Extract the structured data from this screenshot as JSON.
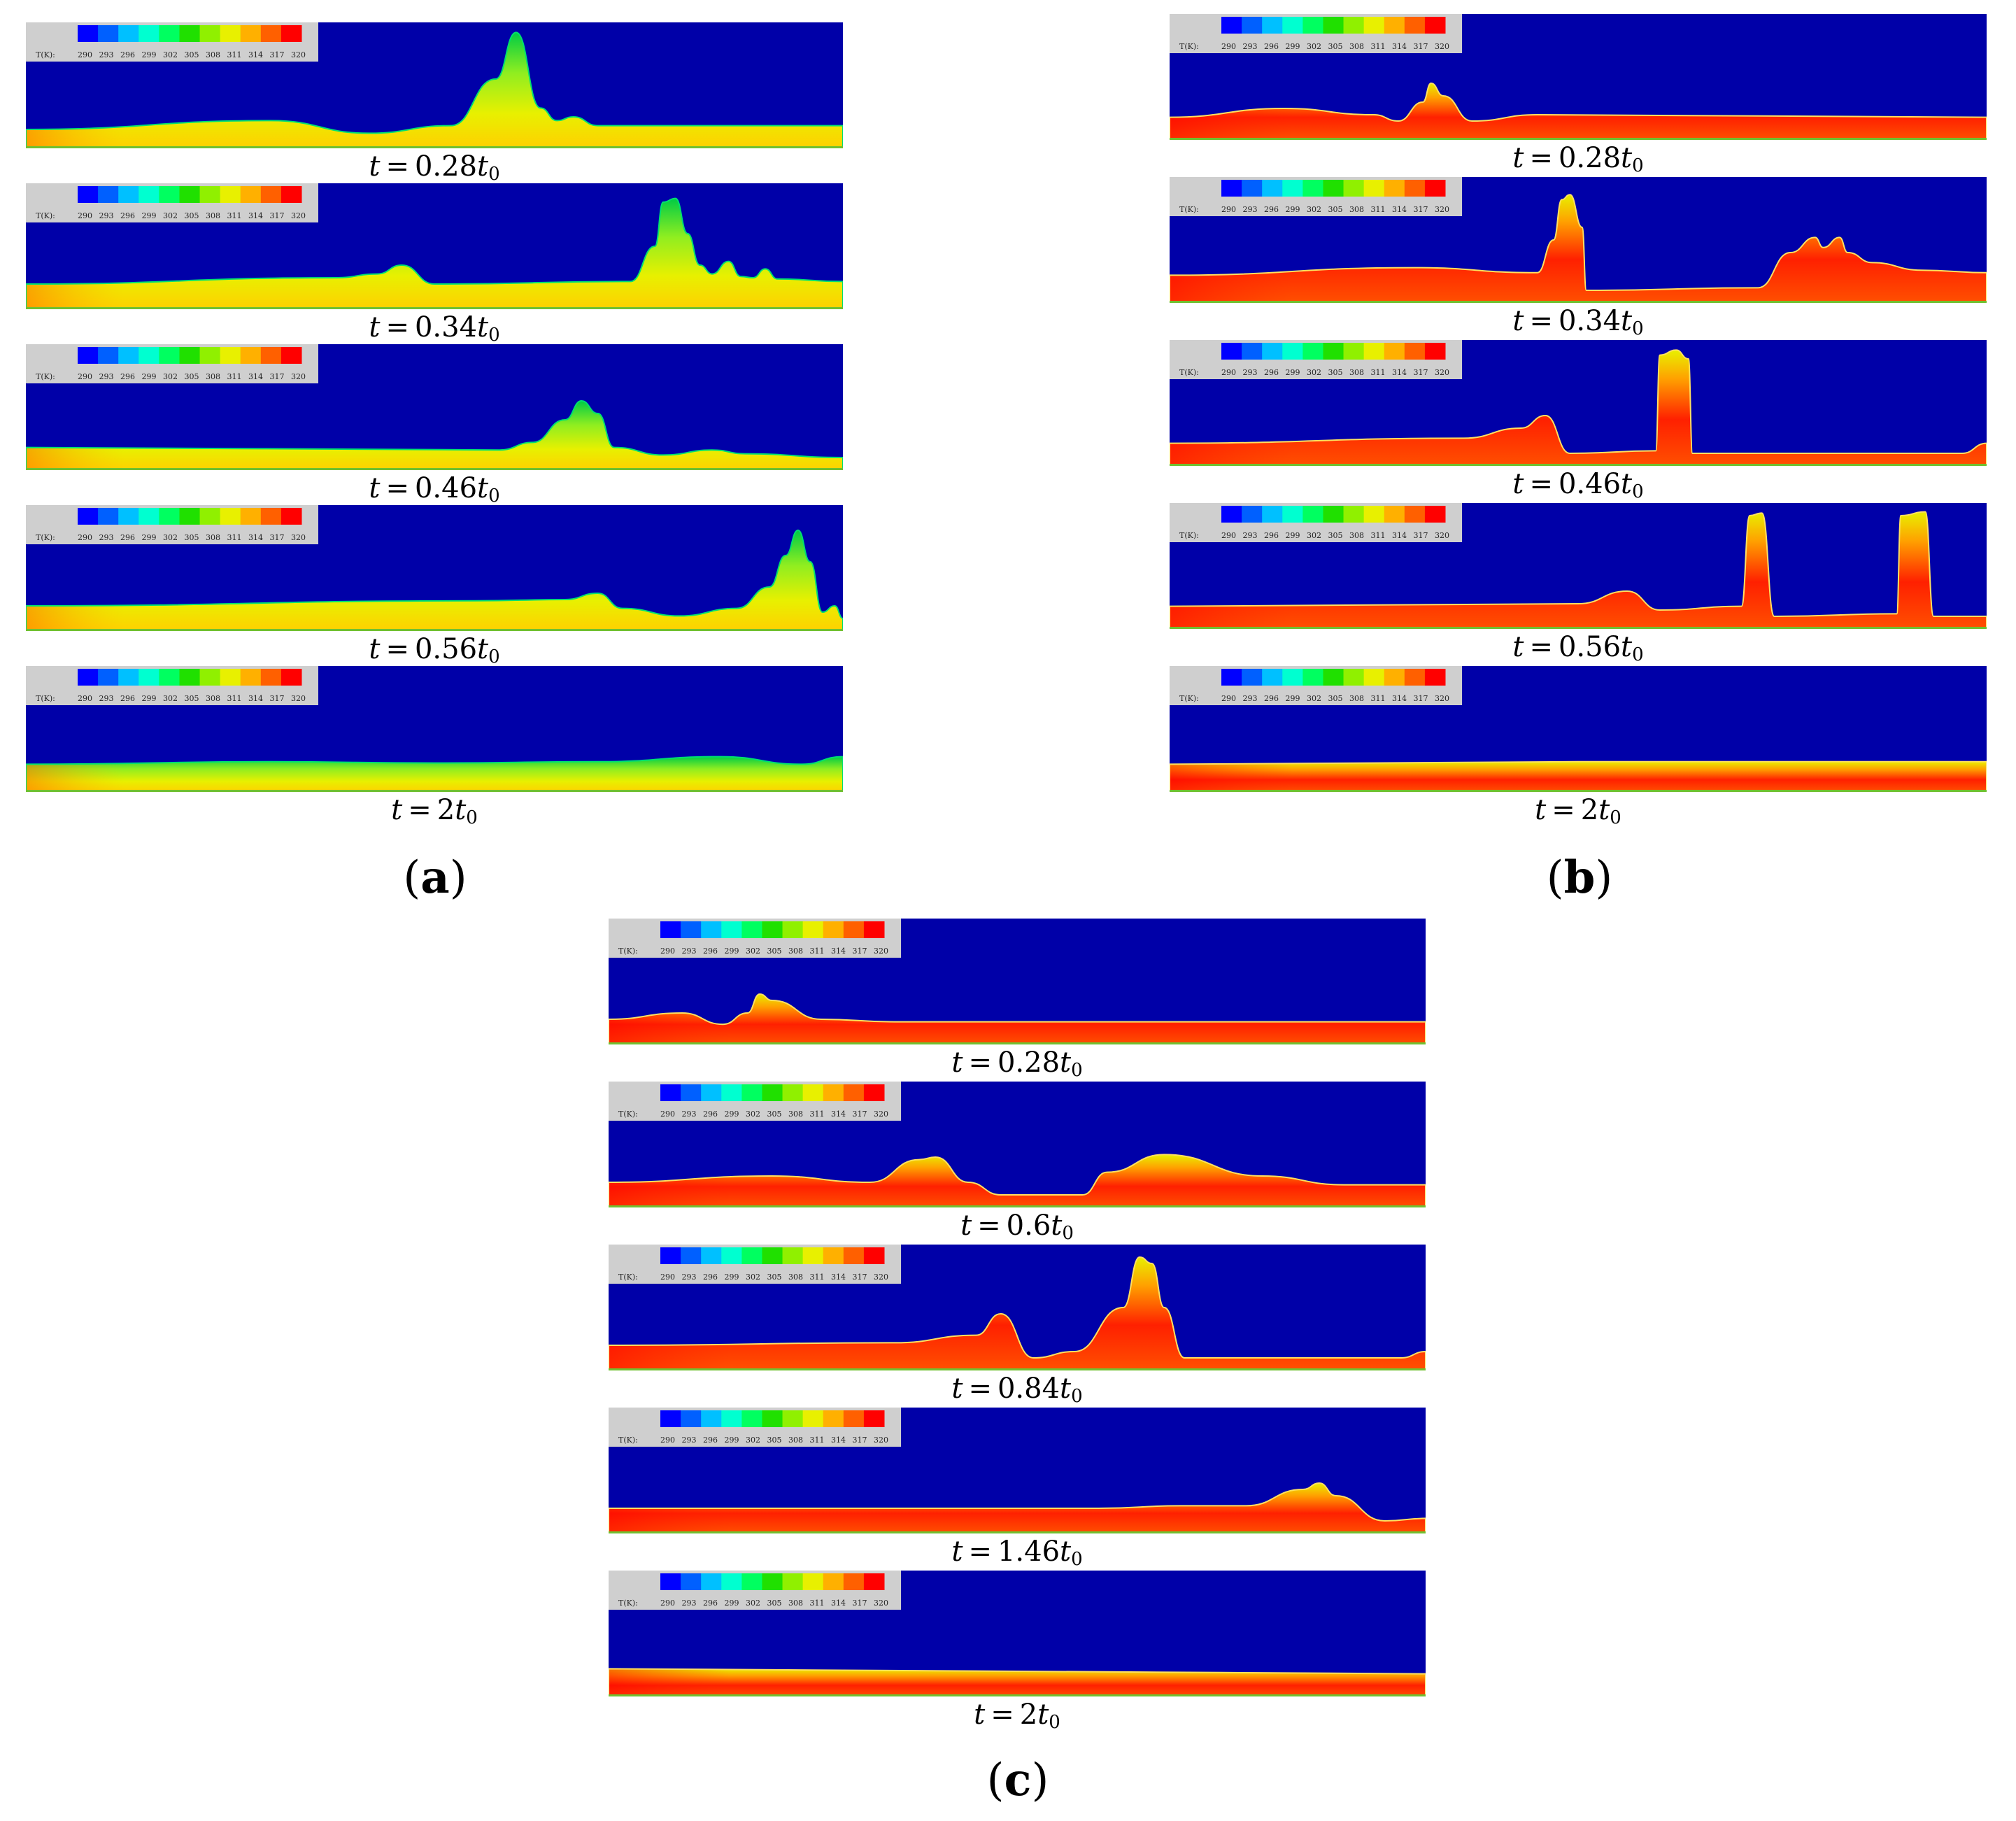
{
  "colorbar": {
    "prefix": "T(K):",
    "ticks": [
      "290",
      "293",
      "296",
      "299",
      "302",
      "305",
      "308",
      "311",
      "314",
      "317",
      "320"
    ],
    "stops": [
      "#0000ff",
      "#0060ff",
      "#00c0ff",
      "#00ffd0",
      "#00ff60",
      "#20e000",
      "#90f000",
      "#e8f000",
      "#ffb000",
      "#ff6000",
      "#ff0000"
    ]
  },
  "colors": {
    "background": "#0000a8",
    "cold": "#00cc44",
    "warm": "#e8f000",
    "hot": "#ff2000"
  },
  "groups": [
    {
      "letter": "a",
      "panels": [
        {
          "coef": "0.28",
          "tone": "green",
          "profile": [
            [
              0,
              0.15
            ],
            [
              0.3,
              0.22
            ],
            [
              0.42,
              0.12
            ],
            [
              0.52,
              0.18
            ],
            [
              0.575,
              0.55
            ],
            [
              0.6,
              0.92
            ],
            [
              0.63,
              0.32
            ],
            [
              0.65,
              0.22
            ],
            [
              0.67,
              0.25
            ],
            [
              0.7,
              0.18
            ],
            [
              1,
              0.18
            ]
          ]
        },
        {
          "coef": "0.34",
          "tone": "green",
          "profile": [
            [
              0,
              0.2
            ],
            [
              0.38,
              0.25
            ],
            [
              0.43,
              0.28
            ],
            [
              0.46,
              0.35
            ],
            [
              0.5,
              0.2
            ],
            [
              0.74,
              0.22
            ],
            [
              0.77,
              0.5
            ],
            [
              0.78,
              0.85
            ],
            [
              0.795,
              0.88
            ],
            [
              0.81,
              0.6
            ],
            [
              0.825,
              0.35
            ],
            [
              0.84,
              0.28
            ],
            [
              0.86,
              0.38
            ],
            [
              0.875,
              0.26
            ],
            [
              0.89,
              0.25
            ],
            [
              0.905,
              0.32
            ],
            [
              0.92,
              0.24
            ],
            [
              1,
              0.22
            ]
          ]
        },
        {
          "coef": "0.46",
          "tone": "green",
          "profile": [
            [
              0,
              0.18
            ],
            [
              0.58,
              0.16
            ],
            [
              0.62,
              0.22
            ],
            [
              0.66,
              0.4
            ],
            [
              0.68,
              0.55
            ],
            [
              0.7,
              0.45
            ],
            [
              0.72,
              0.18
            ],
            [
              0.78,
              0.12
            ],
            [
              0.84,
              0.16
            ],
            [
              0.88,
              0.13
            ],
            [
              1,
              0.1
            ]
          ]
        },
        {
          "coef": "0.56",
          "tone": "green",
          "profile": [
            [
              0,
              0.2
            ],
            [
              0.55,
              0.24
            ],
            [
              0.66,
              0.25
            ],
            [
              0.7,
              0.3
            ],
            [
              0.73,
              0.18
            ],
            [
              0.8,
              0.12
            ],
            [
              0.87,
              0.18
            ],
            [
              0.91,
              0.35
            ],
            [
              0.93,
              0.6
            ],
            [
              0.945,
              0.8
            ],
            [
              0.96,
              0.55
            ],
            [
              0.975,
              0.15
            ],
            [
              0.99,
              0.2
            ],
            [
              1,
              0.1
            ]
          ]
        },
        {
          "coef": "2",
          "tone": "green",
          "profile": [
            [
              0,
              0.22
            ],
            [
              0.3,
              0.24
            ],
            [
              0.5,
              0.23
            ],
            [
              0.7,
              0.24
            ],
            [
              0.85,
              0.28
            ],
            [
              0.95,
              0.22
            ],
            [
              1,
              0.28
            ]
          ]
        }
      ]
    },
    {
      "letter": "b",
      "panels": [
        {
          "coef": "0.28",
          "tone": "hot",
          "profile": [
            [
              0,
              0.18
            ],
            [
              0.14,
              0.25
            ],
            [
              0.25,
              0.2
            ],
            [
              0.28,
              0.15
            ],
            [
              0.31,
              0.3
            ],
            [
              0.32,
              0.45
            ],
            [
              0.335,
              0.35
            ],
            [
              0.37,
              0.15
            ],
            [
              0.45,
              0.2
            ],
            [
              1,
              0.18
            ]
          ]
        },
        {
          "coef": "0.34",
          "tone": "hot",
          "profile": [
            [
              0,
              0.22
            ],
            [
              0.3,
              0.28
            ],
            [
              0.45,
              0.24
            ],
            [
              0.47,
              0.5
            ],
            [
              0.48,
              0.82
            ],
            [
              0.49,
              0.86
            ],
            [
              0.505,
              0.6
            ],
            [
              0.51,
              0.1
            ],
            [
              0.72,
              0.12
            ],
            [
              0.76,
              0.4
            ],
            [
              0.79,
              0.52
            ],
            [
              0.8,
              0.44
            ],
            [
              0.82,
              0.52
            ],
            [
              0.83,
              0.4
            ],
            [
              0.86,
              0.32
            ],
            [
              0.92,
              0.26
            ],
            [
              1,
              0.24
            ]
          ]
        },
        {
          "coef": "0.46",
          "tone": "hot",
          "profile": [
            [
              0,
              0.18
            ],
            [
              0.36,
              0.22
            ],
            [
              0.43,
              0.3
            ],
            [
              0.46,
              0.4
            ],
            [
              0.49,
              0.1
            ],
            [
              0.595,
              0.12
            ],
            [
              0.6,
              0.88
            ],
            [
              0.62,
              0.92
            ],
            [
              0.635,
              0.85
            ],
            [
              0.64,
              0.1
            ],
            [
              0.97,
              0.1
            ],
            [
              1,
              0.18
            ]
          ]
        },
        {
          "coef": "0.56",
          "tone": "hot",
          "profile": [
            [
              0,
              0.18
            ],
            [
              0.5,
              0.2
            ],
            [
              0.56,
              0.3
            ],
            [
              0.6,
              0.15
            ],
            [
              0.7,
              0.18
            ],
            [
              0.71,
              0.9
            ],
            [
              0.725,
              0.92
            ],
            [
              0.74,
              0.1
            ],
            [
              0.89,
              0.12
            ],
            [
              0.895,
              0.9
            ],
            [
              0.925,
              0.93
            ],
            [
              0.935,
              0.1
            ],
            [
              1,
              0.1
            ]
          ]
        },
        {
          "coef": "2",
          "tone": "hot",
          "profile": [
            [
              0,
              0.22
            ],
            [
              0.5,
              0.24
            ],
            [
              1,
              0.24
            ]
          ]
        }
      ]
    },
    {
      "letter": "c",
      "panels": [
        {
          "coef": "0.28",
          "tone": "hot",
          "profile": [
            [
              0,
              0.2
            ],
            [
              0.09,
              0.25
            ],
            [
              0.14,
              0.16
            ],
            [
              0.17,
              0.25
            ],
            [
              0.185,
              0.4
            ],
            [
              0.2,
              0.35
            ],
            [
              0.26,
              0.2
            ],
            [
              0.35,
              0.18
            ],
            [
              1,
              0.18
            ]
          ]
        },
        {
          "coef": "0.6",
          "tone": "hot",
          "profile": [
            [
              0,
              0.2
            ],
            [
              0.2,
              0.25
            ],
            [
              0.32,
              0.2
            ],
            [
              0.38,
              0.38
            ],
            [
              0.4,
              0.4
            ],
            [
              0.44,
              0.2
            ],
            [
              0.48,
              0.1
            ],
            [
              0.58,
              0.1
            ],
            [
              0.61,
              0.28
            ],
            [
              0.68,
              0.42
            ],
            [
              0.8,
              0.25
            ],
            [
              0.9,
              0.18
            ],
            [
              1,
              0.18
            ]
          ]
        },
        {
          "coef": "0.84",
          "tone": "hot",
          "profile": [
            [
              0,
              0.2
            ],
            [
              0.35,
              0.22
            ],
            [
              0.45,
              0.28
            ],
            [
              0.48,
              0.45
            ],
            [
              0.52,
              0.1
            ],
            [
              0.57,
              0.15
            ],
            [
              0.63,
              0.5
            ],
            [
              0.65,
              0.9
            ],
            [
              0.665,
              0.85
            ],
            [
              0.68,
              0.5
            ],
            [
              0.705,
              0.1
            ],
            [
              0.97,
              0.1
            ],
            [
              1,
              0.15
            ]
          ]
        },
        {
          "coef": "1.46",
          "tone": "hot",
          "profile": [
            [
              0,
              0.2
            ],
            [
              0.6,
              0.2
            ],
            [
              0.7,
              0.22
            ],
            [
              0.78,
              0.22
            ],
            [
              0.85,
              0.35
            ],
            [
              0.87,
              0.4
            ],
            [
              0.89,
              0.3
            ],
            [
              0.95,
              0.1
            ],
            [
              1,
              0.12
            ]
          ]
        },
        {
          "coef": "2",
          "tone": "hot",
          "profile": [
            [
              0,
              0.22
            ],
            [
              0.5,
              0.2
            ],
            [
              1,
              0.18
            ]
          ]
        }
      ]
    }
  ]
}
